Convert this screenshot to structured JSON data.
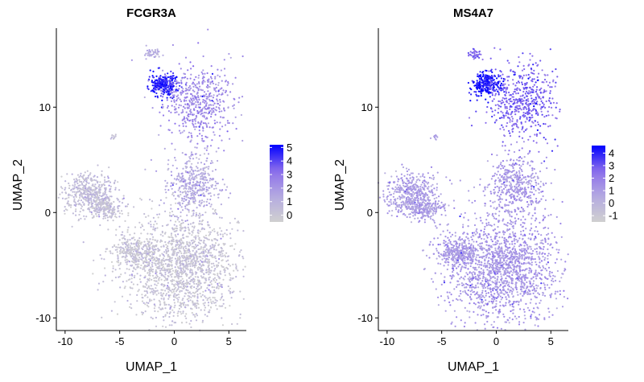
{
  "chart_data": [
    {
      "type": "scatter",
      "title": "FCGR3A",
      "xlabel": "UMAP_1",
      "ylabel": "UMAP_2",
      "xlim": [
        -10.8,
        6.6
      ],
      "ylim": [
        -11.2,
        17.5
      ],
      "xticks": [
        -10,
        -5,
        0,
        5
      ],
      "yticks": [
        -10,
        0,
        10
      ],
      "grid": false,
      "legend": {
        "placement": "right",
        "ticks": [
          0,
          1,
          2,
          3,
          4,
          5
        ],
        "range": [
          -0.5,
          5.2
        ],
        "colors": {
          "low": "#d0d0d0",
          "high": "#0000ff"
        }
      },
      "clusters": [
        {
          "name": "small-top",
          "center": [
            -2.0,
            15.1
          ],
          "spread": [
            0.35,
            0.25
          ],
          "expr": 1.2
        },
        {
          "name": "dense-blob",
          "center": [
            -0.9,
            12.2
          ],
          "spread": [
            0.7,
            0.55
          ],
          "expr": 4.6
        },
        {
          "name": "upper-right",
          "center": [
            2.3,
            10.5
          ],
          "spread": [
            1.6,
            1.8
          ],
          "expr": 2.4
        },
        {
          "name": "small-left",
          "center": [
            -5.6,
            7.2
          ],
          "spread": [
            0.15,
            0.15
          ],
          "expr": 0.4
        },
        {
          "name": "left-cluster",
          "center": [
            -7.8,
            1.8
          ],
          "spread": [
            1.2,
            1.0
          ],
          "expr": 0.4
        },
        {
          "name": "left-tail",
          "center": [
            -6.5,
            0.4
          ],
          "spread": [
            0.9,
            0.5
          ],
          "expr": 0.3
        },
        {
          "name": "mid-cluster",
          "center": [
            1.8,
            2.5
          ],
          "spread": [
            1.3,
            1.5
          ],
          "expr": 1.3
        },
        {
          "name": "lower-main",
          "center": [
            0.6,
            -5.2
          ],
          "spread": [
            2.6,
            2.6
          ],
          "expr": 0.15
        },
        {
          "name": "lower-left-arm",
          "center": [
            -3.5,
            -3.8
          ],
          "spread": [
            1.1,
            0.7
          ],
          "expr": 0.1
        }
      ]
    },
    {
      "type": "scatter",
      "title": "MS4A7",
      "xlabel": "UMAP_1",
      "ylabel": "UMAP_2",
      "xlim": [
        -10.8,
        6.6
      ],
      "ylim": [
        -11.2,
        17.5
      ],
      "xticks": [
        -10,
        -5,
        0,
        5
      ],
      "yticks": [
        -10,
        0,
        10
      ],
      "grid": false,
      "legend": {
        "placement": "right",
        "ticks": [
          -1,
          0,
          1,
          2,
          3,
          4
        ],
        "range": [
          -1.5,
          4.6
        ],
        "colors": {
          "low": "#d0d0d0",
          "high": "#0000ff"
        }
      },
      "clusters": [
        {
          "name": "small-top",
          "center": [
            -2.0,
            15.1
          ],
          "spread": [
            0.35,
            0.25
          ],
          "expr": 2.6
        },
        {
          "name": "dense-blob",
          "center": [
            -0.9,
            12.2
          ],
          "spread": [
            0.7,
            0.55
          ],
          "expr": 4.2
        },
        {
          "name": "upper-right",
          "center": [
            2.3,
            10.5
          ],
          "spread": [
            1.6,
            1.8
          ],
          "expr": 2.8
        },
        {
          "name": "small-left",
          "center": [
            -5.6,
            7.2
          ],
          "spread": [
            0.15,
            0.15
          ],
          "expr": 0.9
        },
        {
          "name": "left-cluster",
          "center": [
            -7.8,
            1.8
          ],
          "spread": [
            1.2,
            1.0
          ],
          "expr": 0.9
        },
        {
          "name": "left-tail",
          "center": [
            -6.5,
            0.4
          ],
          "spread": [
            0.9,
            0.5
          ],
          "expr": 0.9
        },
        {
          "name": "mid-cluster",
          "center": [
            1.8,
            2.5
          ],
          "spread": [
            1.3,
            1.5
          ],
          "expr": 1.2
        },
        {
          "name": "lower-main",
          "center": [
            0.6,
            -5.2
          ],
          "spread": [
            2.6,
            2.6
          ],
          "expr": 1.2
        },
        {
          "name": "lower-left-arm",
          "center": [
            -3.5,
            -3.8
          ],
          "spread": [
            1.1,
            0.7
          ],
          "expr": 1.1
        }
      ]
    }
  ]
}
